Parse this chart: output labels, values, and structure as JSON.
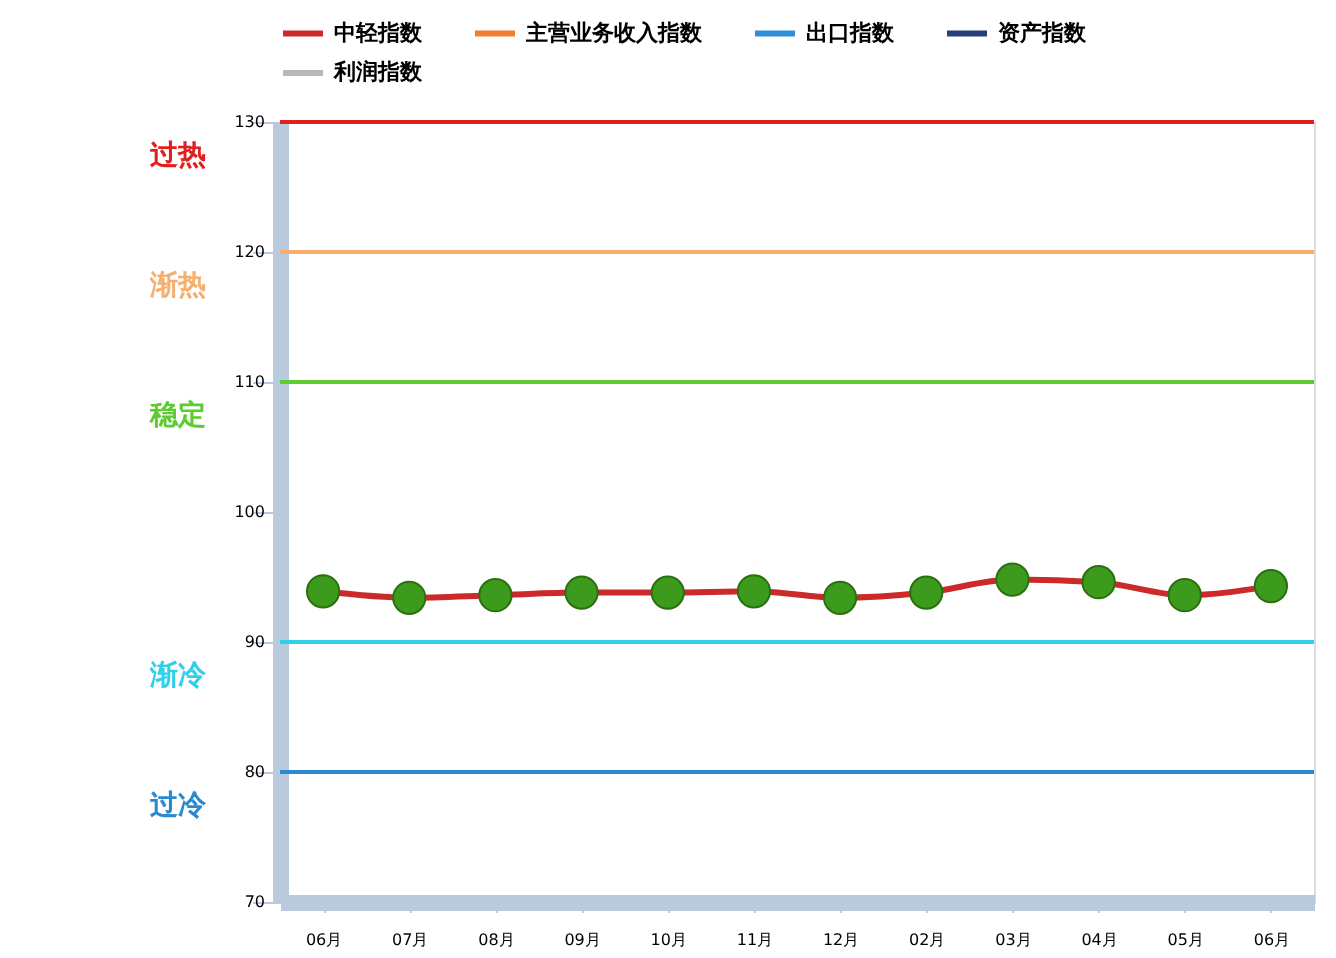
{
  "chart_data": {
    "type": "line",
    "categories": [
      "06月",
      "07月",
      "08月",
      "09月",
      "10月",
      "11月",
      "12月",
      "02月",
      "03月",
      "04月",
      "05月",
      "06月"
    ],
    "series": [
      {
        "name": "中轻指数",
        "color": "#cc2a2a",
        "values": [
          93.9,
          93.4,
          93.6,
          93.8,
          93.8,
          93.9,
          93.4,
          93.8,
          94.8,
          94.6,
          93.6,
          94.3
        ],
        "colors": [
          "#3c9a1c",
          "#3c9a1c",
          "#3c9a1c",
          "#3c9a1c",
          "#3c9a1c",
          "#3c9a1c",
          "#3c9a1c",
          "#3c9a1c",
          "#3c9a1c",
          "#3c9a1c",
          "#3c9a1c",
          "#3c9a1c"
        ]
      },
      {
        "name": "主营业务收入指数",
        "color": "#f08030",
        "values": [
          null,
          null,
          null,
          null,
          null,
          null,
          null,
          null,
          null,
          null,
          null,
          null
        ]
      },
      {
        "name": "出口指数",
        "color": "#2e8fd8",
        "values": [
          null,
          null,
          null,
          null,
          null,
          null,
          null,
          null,
          null,
          null,
          null,
          null
        ]
      },
      {
        "name": "资产指数",
        "color": "#23407a",
        "values": [
          null,
          null,
          null,
          null,
          null,
          null,
          null,
          null,
          null,
          null,
          null,
          null
        ]
      },
      {
        "name": "利润指数",
        "color": "#b8b8b8",
        "values": [
          null,
          null,
          null,
          null,
          null,
          null,
          null,
          null,
          null,
          null,
          null,
          null
        ]
      }
    ],
    "ylim": [
      70,
      130
    ],
    "yticks": [
      70,
      80,
      90,
      100,
      110,
      120,
      130
    ],
    "ref_lines": [
      {
        "axis": "y",
        "value": 130,
        "label": "过热",
        "color": "#e02020"
      },
      {
        "axis": "y",
        "value": 120,
        "label": "渐热",
        "color": "#f5b070"
      },
      {
        "axis": "y",
        "value": 110,
        "label": "稳定",
        "color": "#5ccc30"
      },
      {
        "axis": "y",
        "value": 90,
        "label": "渐冷",
        "color": "#30d0e8"
      },
      {
        "axis": "y",
        "value": 80,
        "label": "过冷",
        "color": "#2a8ad0"
      }
    ],
    "marker": "circle",
    "line_style": "solid",
    "grid": false,
    "legend": "top left"
  }
}
